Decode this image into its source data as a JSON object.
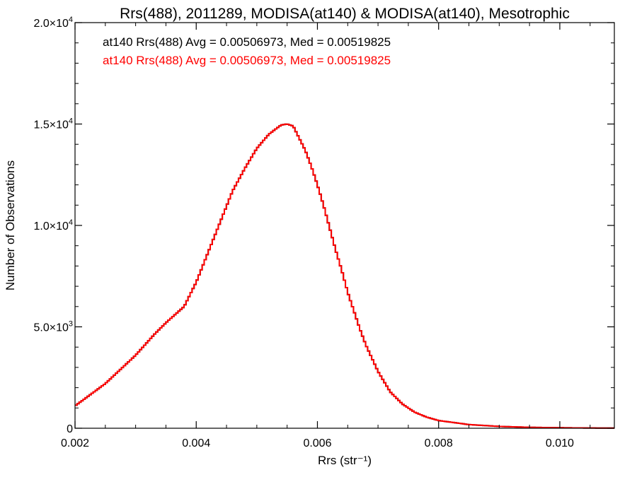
{
  "chart_data": {
    "type": "histogram",
    "title": "Rrs(488), 2011289, MODISA(at140) & MODISA(at140), Mesotrophic",
    "xlabel": "Rrs (str⁻¹)",
    "ylabel": "Number of Observations",
    "xlim": [
      0.002,
      0.0109
    ],
    "ylim": [
      0,
      20000
    ],
    "x_ticks": [
      0.002,
      0.004,
      0.006,
      0.008,
      0.01
    ],
    "x_tick_labels": [
      "0.002",
      "0.004",
      "0.006",
      "0.008",
      "0.010"
    ],
    "y_ticks": [
      0,
      5000,
      10000,
      15000,
      20000
    ],
    "y_tick_labels": [
      {
        "mant": "0",
        "exp": ""
      },
      {
        "mant": "5.0×10",
        "exp": "3"
      },
      {
        "mant": "1.0×10",
        "exp": "4"
      },
      {
        "mant": "1.5×10",
        "exp": "4"
      },
      {
        "mant": "2.0×10",
        "exp": "4"
      }
    ],
    "annotations": [
      {
        "text": "at140 Rrs(488) Avg = 0.00506973, Med = 0.00519825",
        "color": "#000000"
      },
      {
        "text": "at140 Rrs(488) Avg = 0.00506973, Med = 0.00519825",
        "color": "#ff0000"
      }
    ],
    "series": [
      {
        "color": "#000000",
        "x": [
          0.002,
          0.0025,
          0.003,
          0.0033,
          0.0035,
          0.0038,
          0.004,
          0.0042,
          0.0044,
          0.0046,
          0.0048,
          0.005,
          0.0052,
          0.0054,
          0.0055,
          0.0056,
          0.0057,
          0.0058,
          0.0059,
          0.006,
          0.0061,
          0.0062,
          0.0063,
          0.0064,
          0.0065,
          0.0066,
          0.0067,
          0.0068,
          0.007,
          0.0072,
          0.0074,
          0.0076,
          0.0078,
          0.008,
          0.0085,
          0.009,
          0.0095,
          0.01,
          0.0105,
          0.0109
        ],
        "y": [
          1100,
          2200,
          3600,
          4600,
          5200,
          6000,
          7200,
          8700,
          10200,
          11700,
          12800,
          13800,
          14500,
          14950,
          15000,
          14900,
          14300,
          13700,
          12900,
          12000,
          11000,
          9900,
          8800,
          7800,
          6700,
          5800,
          4900,
          4100,
          2800,
          1800,
          1200,
          800,
          550,
          380,
          180,
          90,
          45,
          25,
          12,
          8
        ]
      },
      {
        "color": "#ff0000",
        "x": [
          0.002,
          0.0025,
          0.003,
          0.0033,
          0.0035,
          0.0038,
          0.004,
          0.0042,
          0.0044,
          0.0046,
          0.0048,
          0.005,
          0.0052,
          0.0054,
          0.0055,
          0.0056,
          0.0057,
          0.0058,
          0.0059,
          0.006,
          0.0061,
          0.0062,
          0.0063,
          0.0064,
          0.0065,
          0.0066,
          0.0067,
          0.0068,
          0.007,
          0.0072,
          0.0074,
          0.0076,
          0.0078,
          0.008,
          0.0085,
          0.009,
          0.0095,
          0.01,
          0.0105,
          0.0109
        ],
        "y": [
          1100,
          2200,
          3600,
          4600,
          5200,
          6000,
          7200,
          8700,
          10200,
          11700,
          12800,
          13800,
          14500,
          14950,
          15000,
          14900,
          14300,
          13700,
          12900,
          12000,
          11000,
          9900,
          8800,
          7800,
          6700,
          5800,
          4900,
          4100,
          2800,
          1800,
          1200,
          800,
          550,
          380,
          180,
          90,
          45,
          25,
          12,
          8
        ]
      }
    ],
    "grid": false,
    "legend": "none"
  }
}
